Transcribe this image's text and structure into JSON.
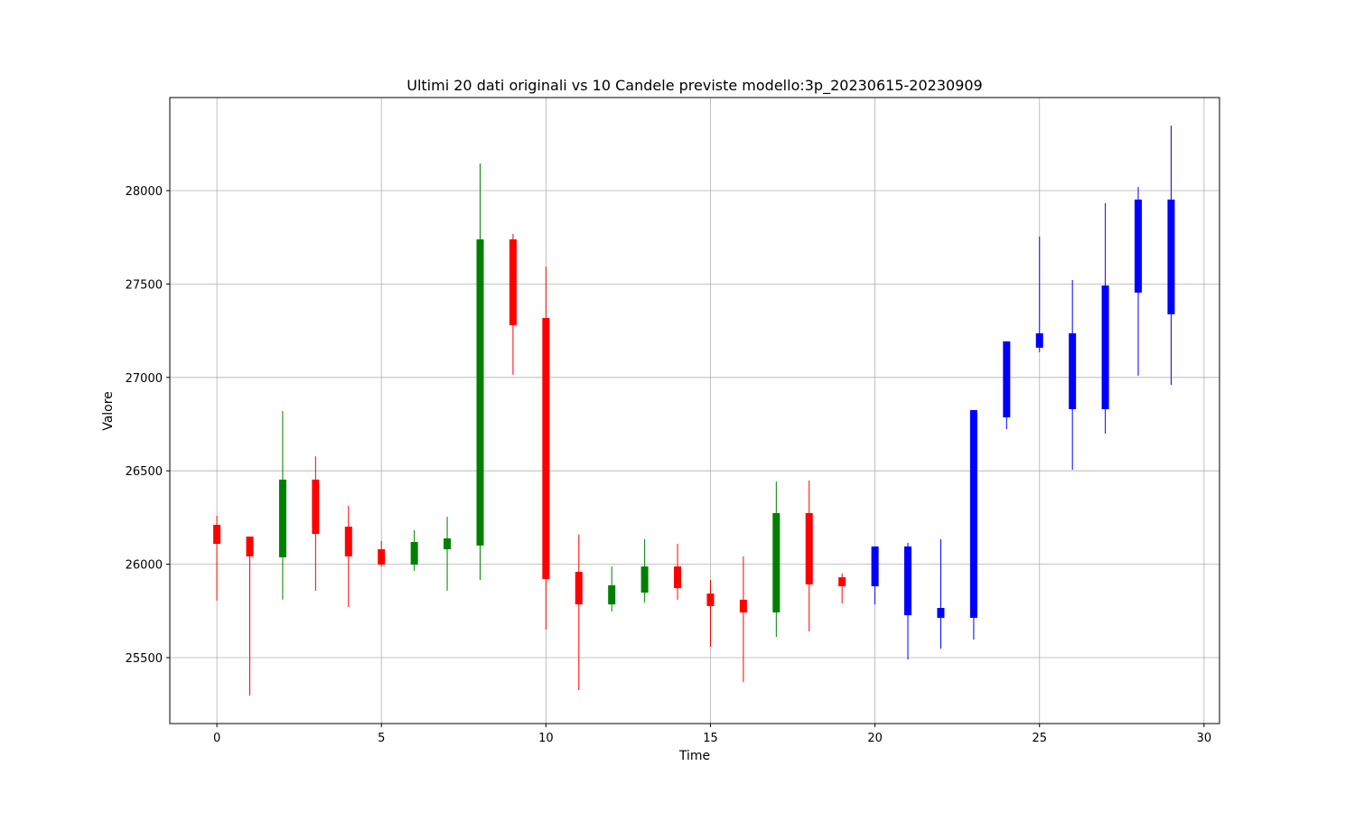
{
  "chart_data": {
    "type": "candlestick",
    "title": "Ultimi 20 dati originali vs 10 Candele previste modello:3p_20230615-20230909",
    "xlabel": "Time",
    "ylabel": "Valore",
    "x": [
      0,
      1,
      2,
      3,
      4,
      5,
      6,
      7,
      8,
      9,
      10,
      11,
      12,
      13,
      14,
      15,
      16,
      17,
      18,
      19,
      20,
      21,
      22,
      23,
      24,
      25,
      26,
      27,
      28,
      29
    ],
    "open": [
      26211,
      26148,
      26037,
      26453,
      26201,
      26080,
      25998,
      26080,
      26100,
      27739,
      27318,
      25959,
      25785,
      25848,
      25988,
      25843,
      25810,
      25742,
      26274,
      25930,
      25882,
      26095,
      25766,
      25713,
      26786,
      27159,
      26830,
      26830,
      27454,
      27338
    ],
    "high": [
      26259,
      26148,
      26820,
      26578,
      26312,
      26124,
      26182,
      26254,
      28145,
      27768,
      27594,
      26158,
      25988,
      26134,
      26109,
      25916,
      26042,
      26443,
      26448,
      25950,
      26095,
      26114,
      26134,
      26825,
      27193,
      27754,
      27521,
      27932,
      28020,
      28348
    ],
    "low": [
      25805,
      25297,
      25810,
      25858,
      25771,
      25988,
      25964,
      25858,
      25916,
      27014,
      25650,
      25326,
      25747,
      25795,
      25810,
      25558,
      25369,
      25611,
      25640,
      25790,
      25785,
      25490,
      25548,
      25597,
      26723,
      27135,
      26506,
      26699,
      27009,
      26960
    ],
    "close": [
      26109,
      26042,
      26453,
      26162,
      26042,
      25998,
      26119,
      26138,
      27739,
      27280,
      25921,
      25785,
      25887,
      25988,
      25872,
      25776,
      25742,
      26274,
      25892,
      25882,
      26095,
      25727,
      25713,
      26825,
      27193,
      27236,
      27236,
      27492,
      27952,
      27952
    ],
    "colors": [
      "red",
      "red",
      "green",
      "red",
      "red",
      "red",
      "green",
      "green",
      "green",
      "red",
      "red",
      "red",
      "green",
      "green",
      "red",
      "red",
      "red",
      "green",
      "red",
      "red",
      "blue",
      "blue",
      "blue",
      "blue",
      "blue",
      "blue",
      "blue",
      "blue",
      "blue",
      "blue"
    ],
    "xlim": [
      -1.43,
      30.47
    ],
    "ylim": [
      25147,
      28498
    ],
    "xticks": [
      0,
      5,
      10,
      15,
      20,
      25,
      30
    ],
    "yticks": [
      25500,
      26000,
      26500,
      27000,
      27500,
      28000
    ],
    "grid": true
  }
}
